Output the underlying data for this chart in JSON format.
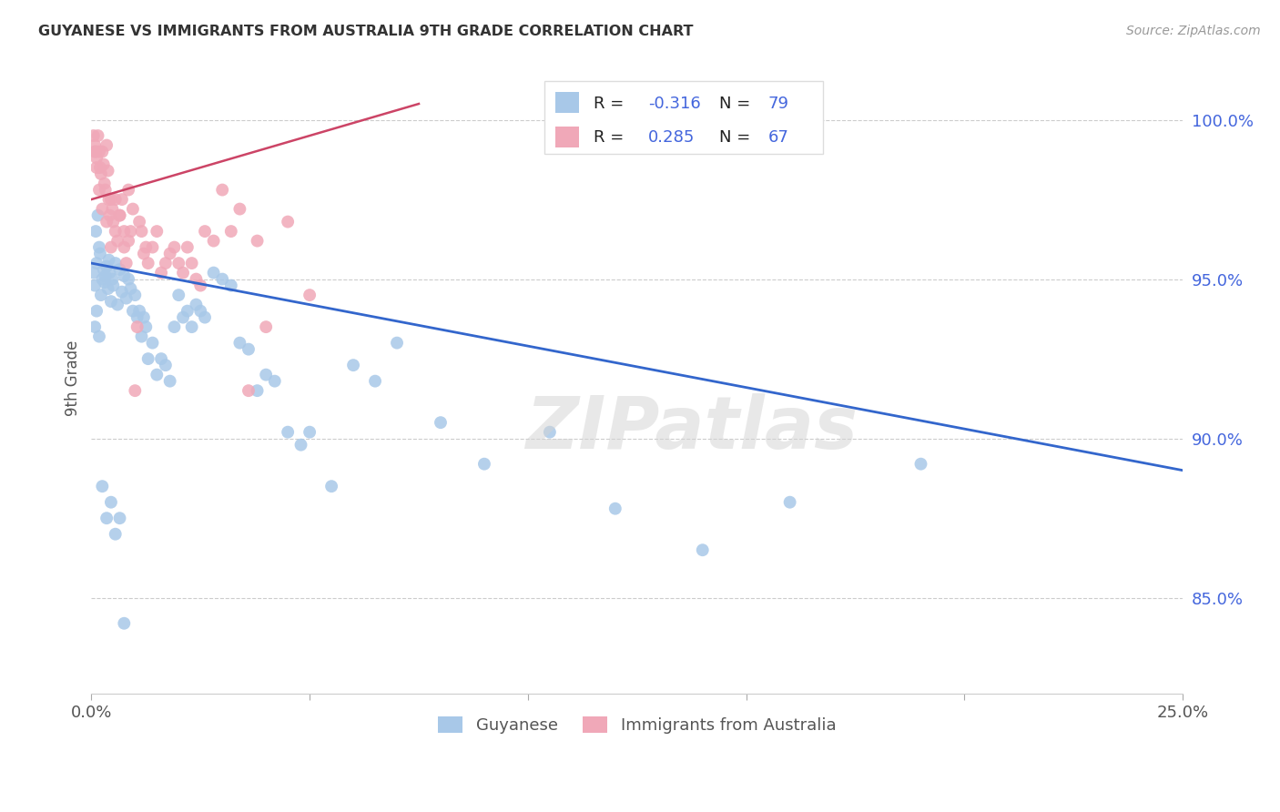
{
  "title": "GUYANESE VS IMMIGRANTS FROM AUSTRALIA 9TH GRADE CORRELATION CHART",
  "source": "Source: ZipAtlas.com",
  "ylabel": "9th Grade",
  "yticks": [
    100.0,
    95.0,
    90.0,
    85.0
  ],
  "ytick_labels": [
    "100.0%",
    "95.0%",
    "90.0%",
    "85.0%"
  ],
  "xlim": [
    0.0,
    25.0
  ],
  "ylim": [
    82.0,
    101.8
  ],
  "blue_R": -0.316,
  "blue_N": 79,
  "pink_R": 0.285,
  "pink_N": 67,
  "blue_color": "#a8c8e8",
  "pink_color": "#f0a8b8",
  "blue_line_color": "#3366cc",
  "pink_line_color": "#cc4466",
  "background_color": "#ffffff",
  "watermark": "ZIPatlas",
  "blue_line_x": [
    0.0,
    25.0
  ],
  "blue_line_y": [
    95.5,
    89.0
  ],
  "pink_line_x": [
    0.0,
    7.5
  ],
  "pink_line_y": [
    97.5,
    100.5
  ],
  "blue_points_x": [
    0.05,
    0.08,
    0.1,
    0.12,
    0.15,
    0.18,
    0.2,
    0.22,
    0.25,
    0.28,
    0.3,
    0.32,
    0.35,
    0.38,
    0.4,
    0.42,
    0.45,
    0.48,
    0.5,
    0.55,
    0.6,
    0.65,
    0.7,
    0.75,
    0.8,
    0.85,
    0.9,
    0.95,
    1.0,
    1.05,
    1.1,
    1.15,
    1.2,
    1.25,
    1.3,
    1.4,
    1.5,
    1.6,
    1.7,
    1.8,
    1.9,
    2.0,
    2.1,
    2.2,
    2.3,
    2.4,
    2.5,
    2.6,
    2.8,
    3.0,
    3.2,
    3.4,
    3.6,
    3.8,
    4.0,
    4.2,
    4.5,
    4.8,
    5.0,
    5.5,
    6.0,
    6.5,
    7.0,
    8.0,
    9.0,
    10.5,
    12.0,
    14.0,
    16.0,
    19.0,
    0.08,
    0.12,
    0.18,
    0.25,
    0.35,
    0.45,
    0.55,
    0.65,
    0.75
  ],
  "blue_points_y": [
    95.2,
    94.8,
    96.5,
    95.5,
    97.0,
    96.0,
    95.8,
    94.5,
    95.0,
    95.3,
    94.9,
    95.1,
    95.4,
    94.7,
    95.6,
    95.2,
    94.3,
    95.0,
    94.8,
    95.5,
    94.2,
    95.3,
    94.6,
    95.1,
    94.4,
    95.0,
    94.7,
    94.0,
    94.5,
    93.8,
    94.0,
    93.2,
    93.8,
    93.5,
    92.5,
    93.0,
    92.0,
    92.5,
    92.3,
    91.8,
    93.5,
    94.5,
    93.8,
    94.0,
    93.5,
    94.2,
    94.0,
    93.8,
    95.2,
    95.0,
    94.8,
    93.0,
    92.8,
    91.5,
    92.0,
    91.8,
    90.2,
    89.8,
    90.2,
    88.5,
    92.3,
    91.8,
    93.0,
    90.5,
    89.2,
    90.2,
    87.8,
    86.5,
    88.0,
    89.2,
    93.5,
    94.0,
    93.2,
    88.5,
    87.5,
    88.0,
    87.0,
    87.5,
    84.2
  ],
  "pink_points_x": [
    0.05,
    0.08,
    0.1,
    0.12,
    0.15,
    0.18,
    0.2,
    0.22,
    0.25,
    0.28,
    0.3,
    0.32,
    0.35,
    0.38,
    0.4,
    0.42,
    0.45,
    0.48,
    0.5,
    0.55,
    0.6,
    0.65,
    0.7,
    0.75,
    0.8,
    0.85,
    0.9,
    0.95,
    1.0,
    1.05,
    1.1,
    1.15,
    1.2,
    1.25,
    1.3,
    1.4,
    1.5,
    1.6,
    1.7,
    1.8,
    1.9,
    2.0,
    2.1,
    2.2,
    2.3,
    2.4,
    2.5,
    2.6,
    2.8,
    3.0,
    3.2,
    3.4,
    3.6,
    4.0,
    4.5,
    5.0,
    3.8,
    0.08,
    0.12,
    0.18,
    0.25,
    0.35,
    0.45,
    0.55,
    0.65,
    0.75,
    0.85
  ],
  "pink_points_y": [
    99.5,
    99.2,
    99.0,
    98.8,
    99.5,
    99.0,
    98.5,
    98.3,
    99.0,
    98.6,
    98.0,
    97.8,
    99.2,
    98.4,
    97.5,
    97.0,
    97.5,
    97.2,
    96.8,
    96.5,
    96.2,
    97.0,
    97.5,
    96.0,
    95.5,
    97.8,
    96.5,
    97.2,
    91.5,
    93.5,
    96.8,
    96.5,
    95.8,
    96.0,
    95.5,
    96.0,
    96.5,
    95.2,
    95.5,
    95.8,
    96.0,
    95.5,
    95.2,
    96.0,
    95.5,
    95.0,
    94.8,
    96.5,
    96.2,
    97.8,
    96.5,
    97.2,
    91.5,
    93.5,
    96.8,
    94.5,
    96.2,
    99.0,
    98.5,
    97.8,
    97.2,
    96.8,
    96.0,
    97.5,
    97.0,
    96.5,
    96.2
  ]
}
